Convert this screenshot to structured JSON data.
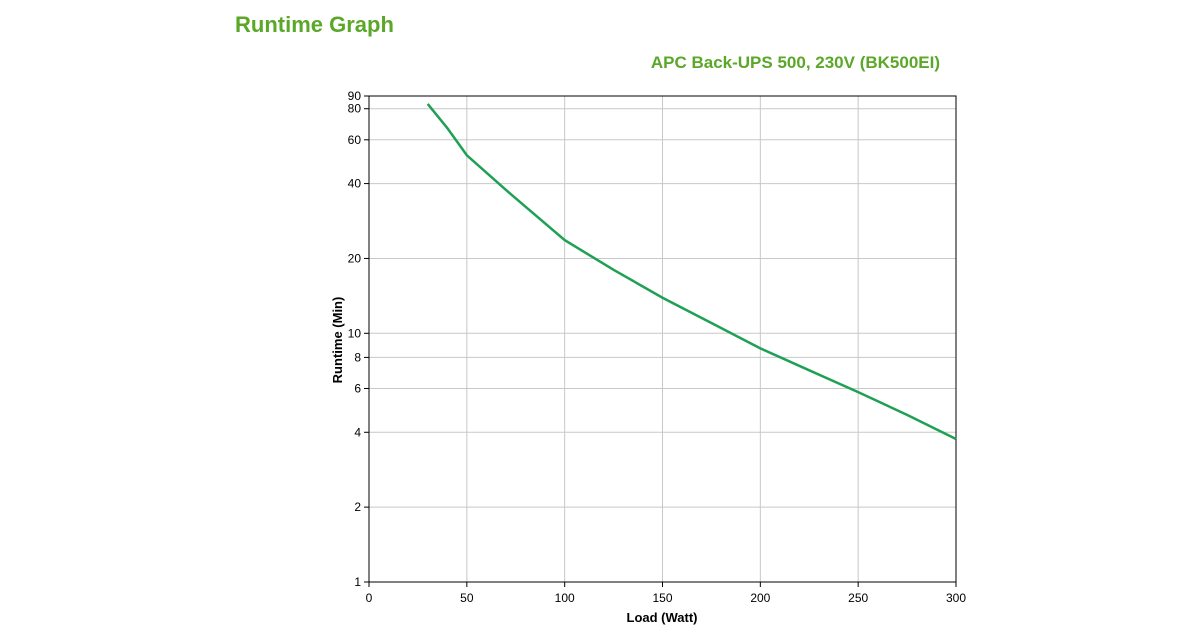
{
  "chart_data": {
    "type": "line",
    "title": "Runtime Graph",
    "subtitle": "APC Back-UPS 500, 230V (BK500EI)",
    "x_label": "Load (Watt)",
    "y_label": "Runtime (Min)",
    "x": [
      30,
      40,
      50,
      70,
      85,
      100,
      125,
      150,
      175,
      200,
      225,
      250,
      275,
      300
    ],
    "series": [
      {
        "name": "BK500EI",
        "color": "#1fa055",
        "values": [
          83.6,
          66.9,
          52,
          37.7,
          29.9,
          23.7,
          18.0,
          13.9,
          11.0,
          8.7,
          7.1,
          5.8,
          4.7,
          3.76
        ]
      }
    ],
    "xlim": [
      0,
      300
    ],
    "xticks": [
      0,
      50,
      100,
      150,
      200,
      250,
      300
    ],
    "ylim": [
      1,
      90
    ],
    "yticks": [
      1,
      2,
      4,
      6,
      8,
      10,
      20,
      40,
      60,
      80,
      90
    ],
    "y_scale": "log",
    "grid": true
  }
}
